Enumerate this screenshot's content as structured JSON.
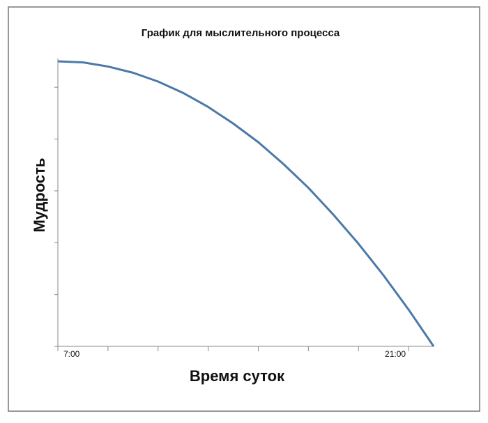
{
  "chart_data": {
    "type": "line",
    "title": "График для мыслительного процесса",
    "xlabel": "Время суток",
    "ylabel": "Мудрость",
    "x": [
      7,
      8,
      9,
      10,
      11,
      12,
      13,
      14,
      15,
      16,
      17,
      18,
      19,
      20,
      21,
      22
    ],
    "series": [
      {
        "color": "#4b79a8",
        "values": [
          5.5,
          5.48,
          5.4,
          5.28,
          5.11,
          4.89,
          4.62,
          4.3,
          3.94,
          3.52,
          3.06,
          2.54,
          1.98,
          1.37,
          0.71,
          0
        ]
      }
    ],
    "xlim": [
      7,
      22
    ],
    "xticks": [
      {
        "value": 7,
        "label": "7:00"
      },
      9,
      11,
      13,
      15,
      17,
      19,
      {
        "value": 21,
        "label": "21:00"
      }
    ],
    "ylim": [
      0,
      5.5
    ],
    "yticks": [
      0,
      1,
      2,
      3,
      4,
      5
    ],
    "grid": false
  }
}
